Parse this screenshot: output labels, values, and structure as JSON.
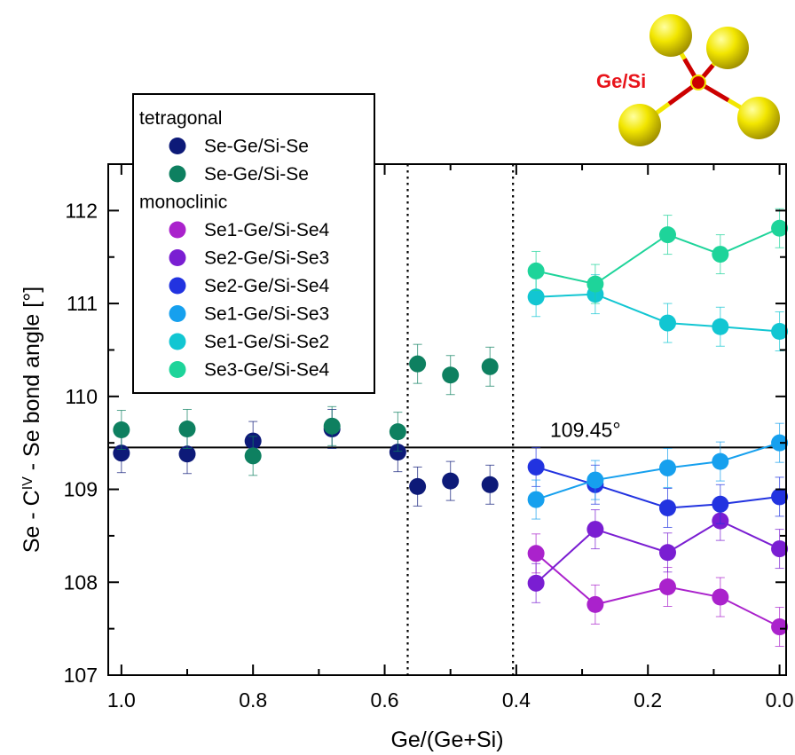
{
  "chart_data": {
    "type": "scatter",
    "xlabel": "Ge/(Ge+Si)",
    "ylabel_parts": [
      "Se - C",
      "IV",
      " - Se bond angle  [°]"
    ],
    "xlim": [
      1.02,
      -0.01
    ],
    "ylim": [
      107,
      112.5
    ],
    "x_ticks": [
      "1.0",
      "0.8",
      "0.6",
      "0.4",
      "0.2",
      "0.0"
    ],
    "y_ticks": [
      "107",
      "108",
      "109",
      "110",
      "111",
      "112"
    ],
    "reference_line": {
      "y": 109.45,
      "label": "109.45°"
    },
    "phase_boundaries": [
      0.565,
      0.405
    ],
    "legend": {
      "groups": [
        {
          "title": "tetragonal",
          "entries": [
            {
              "label": "Se-Ge/Si-Se",
              "color": "#0d1a78"
            },
            {
              "label": "Se-Ge/Si-Se",
              "color": "#0e8060"
            }
          ]
        },
        {
          "title": "monoclinic",
          "entries": [
            {
              "label": "Se1-Ge/Si-Se4",
              "color": "#aa22cc"
            },
            {
              "label": "Se2-Ge/Si-Se3",
              "color": "#7a1ed2"
            },
            {
              "label": "Se2-Ge/Si-Se4",
              "color": "#2233e0"
            },
            {
              "label": "Se1-Ge/Si-Se3",
              "color": "#16a0ee"
            },
            {
              "label": "Se1-Ge/Si-Se2",
              "color": "#12c6d2"
            },
            {
              "label": "Se3-Ge/Si-Se4",
              "color": "#1ed49a"
            }
          ]
        }
      ]
    },
    "series": [
      {
        "name": "Se-Ge/Si-Se",
        "color": "#0d1a78",
        "connected": false,
        "points": [
          [
            1.0,
            109.39
          ],
          [
            0.9,
            109.38
          ],
          [
            0.8,
            109.52
          ],
          [
            0.68,
            109.65
          ],
          [
            0.58,
            109.4
          ],
          [
            0.55,
            109.03
          ],
          [
            0.5,
            109.09
          ],
          [
            0.44,
            109.05
          ]
        ]
      },
      {
        "name": "Se-Ge/Si-Se",
        "color": "#0e8060",
        "connected": false,
        "points": [
          [
            1.0,
            109.64
          ],
          [
            0.9,
            109.65
          ],
          [
            0.8,
            109.36
          ],
          [
            0.68,
            109.68
          ],
          [
            0.58,
            109.62
          ],
          [
            0.55,
            110.35
          ],
          [
            0.5,
            110.23
          ],
          [
            0.44,
            110.32
          ]
        ]
      },
      {
        "name": "Se1-Ge/Si-Se4",
        "color": "#aa22cc",
        "connected": true,
        "points": [
          [
            0.37,
            108.31
          ],
          [
            0.28,
            107.76
          ],
          [
            0.17,
            107.95
          ],
          [
            0.09,
            107.84
          ],
          [
            0.0,
            107.52
          ]
        ]
      },
      {
        "name": "Se2-Ge/Si-Se3",
        "color": "#7a1ed2",
        "connected": true,
        "points": [
          [
            0.37,
            107.99
          ],
          [
            0.28,
            108.57
          ],
          [
            0.17,
            108.32
          ],
          [
            0.09,
            108.66
          ],
          [
            0.0,
            108.36
          ]
        ]
      },
      {
        "name": "Se2-Ge/Si-Se4",
        "color": "#2233e0",
        "connected": true,
        "points": [
          [
            0.37,
            109.24
          ],
          [
            0.28,
            109.05
          ],
          [
            0.17,
            108.8
          ],
          [
            0.09,
            108.84
          ],
          [
            0.0,
            108.92
          ]
        ]
      },
      {
        "name": "Se1-Ge/Si-Se3",
        "color": "#16a0ee",
        "connected": true,
        "points": [
          [
            0.37,
            108.89
          ],
          [
            0.28,
            109.1
          ],
          [
            0.17,
            109.23
          ],
          [
            0.09,
            109.3
          ],
          [
            0.0,
            109.5
          ]
        ]
      },
      {
        "name": "Se1-Ge/Si-Se2",
        "color": "#12c6d2",
        "connected": true,
        "points": [
          [
            0.37,
            111.07
          ],
          [
            0.28,
            111.1
          ],
          [
            0.17,
            110.79
          ],
          [
            0.09,
            110.75
          ],
          [
            0.0,
            110.7
          ]
        ]
      },
      {
        "name": "Se3-Ge/Si-Se4",
        "color": "#1ed49a",
        "connected": true,
        "points": [
          [
            0.37,
            111.35
          ],
          [
            0.28,
            111.21
          ],
          [
            0.17,
            111.74
          ],
          [
            0.09,
            111.53
          ],
          [
            0.0,
            111.81
          ]
        ]
      }
    ],
    "error_bar": 0.21,
    "inset": {
      "label": "Ge/Si",
      "atom_color": "#f2e600",
      "bond_color": "#cc0000"
    }
  }
}
